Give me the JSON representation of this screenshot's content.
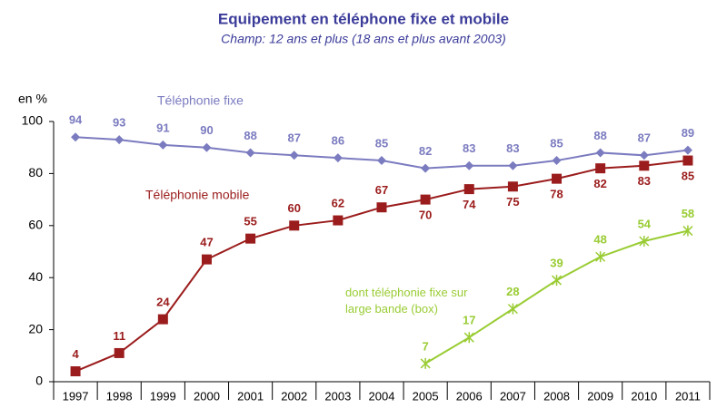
{
  "chart_data": {
    "type": "line",
    "title": "Equipement en téléphone fixe et mobile",
    "subtitle": "Champ: 12 ans et plus (18 ans et plus avant 2003)",
    "y_label": "en %",
    "categories": [
      "1997",
      "1998",
      "1999",
      "2000",
      "2001",
      "2002",
      "2003",
      "2004",
      "2005",
      "2006",
      "2007",
      "2008",
      "2009",
      "2010",
      "2011"
    ],
    "ylim": [
      0,
      100
    ],
    "yticks": [
      0,
      20,
      40,
      60,
      80,
      100
    ],
    "series": [
      {
        "name": "Téléphonie fixe",
        "color": "#7b7bc0",
        "marker": "diamond",
        "values": [
          94,
          93,
          91,
          90,
          88,
          87,
          86,
          85,
          82,
          83,
          83,
          85,
          88,
          87,
          89
        ]
      },
      {
        "name": "Téléphonie mobile",
        "color": "#9b1c1c",
        "marker": "square",
        "values": [
          4,
          11,
          24,
          47,
          55,
          60,
          62,
          67,
          70,
          74,
          75,
          78,
          82,
          83,
          85
        ]
      },
      {
        "name": "dont téléphonie fixe sur large bande (box)",
        "color": "#99cc33",
        "marker": "star",
        "values": [
          null,
          null,
          null,
          null,
          null,
          null,
          null,
          null,
          7,
          17,
          28,
          39,
          48,
          54,
          58
        ]
      }
    ]
  }
}
